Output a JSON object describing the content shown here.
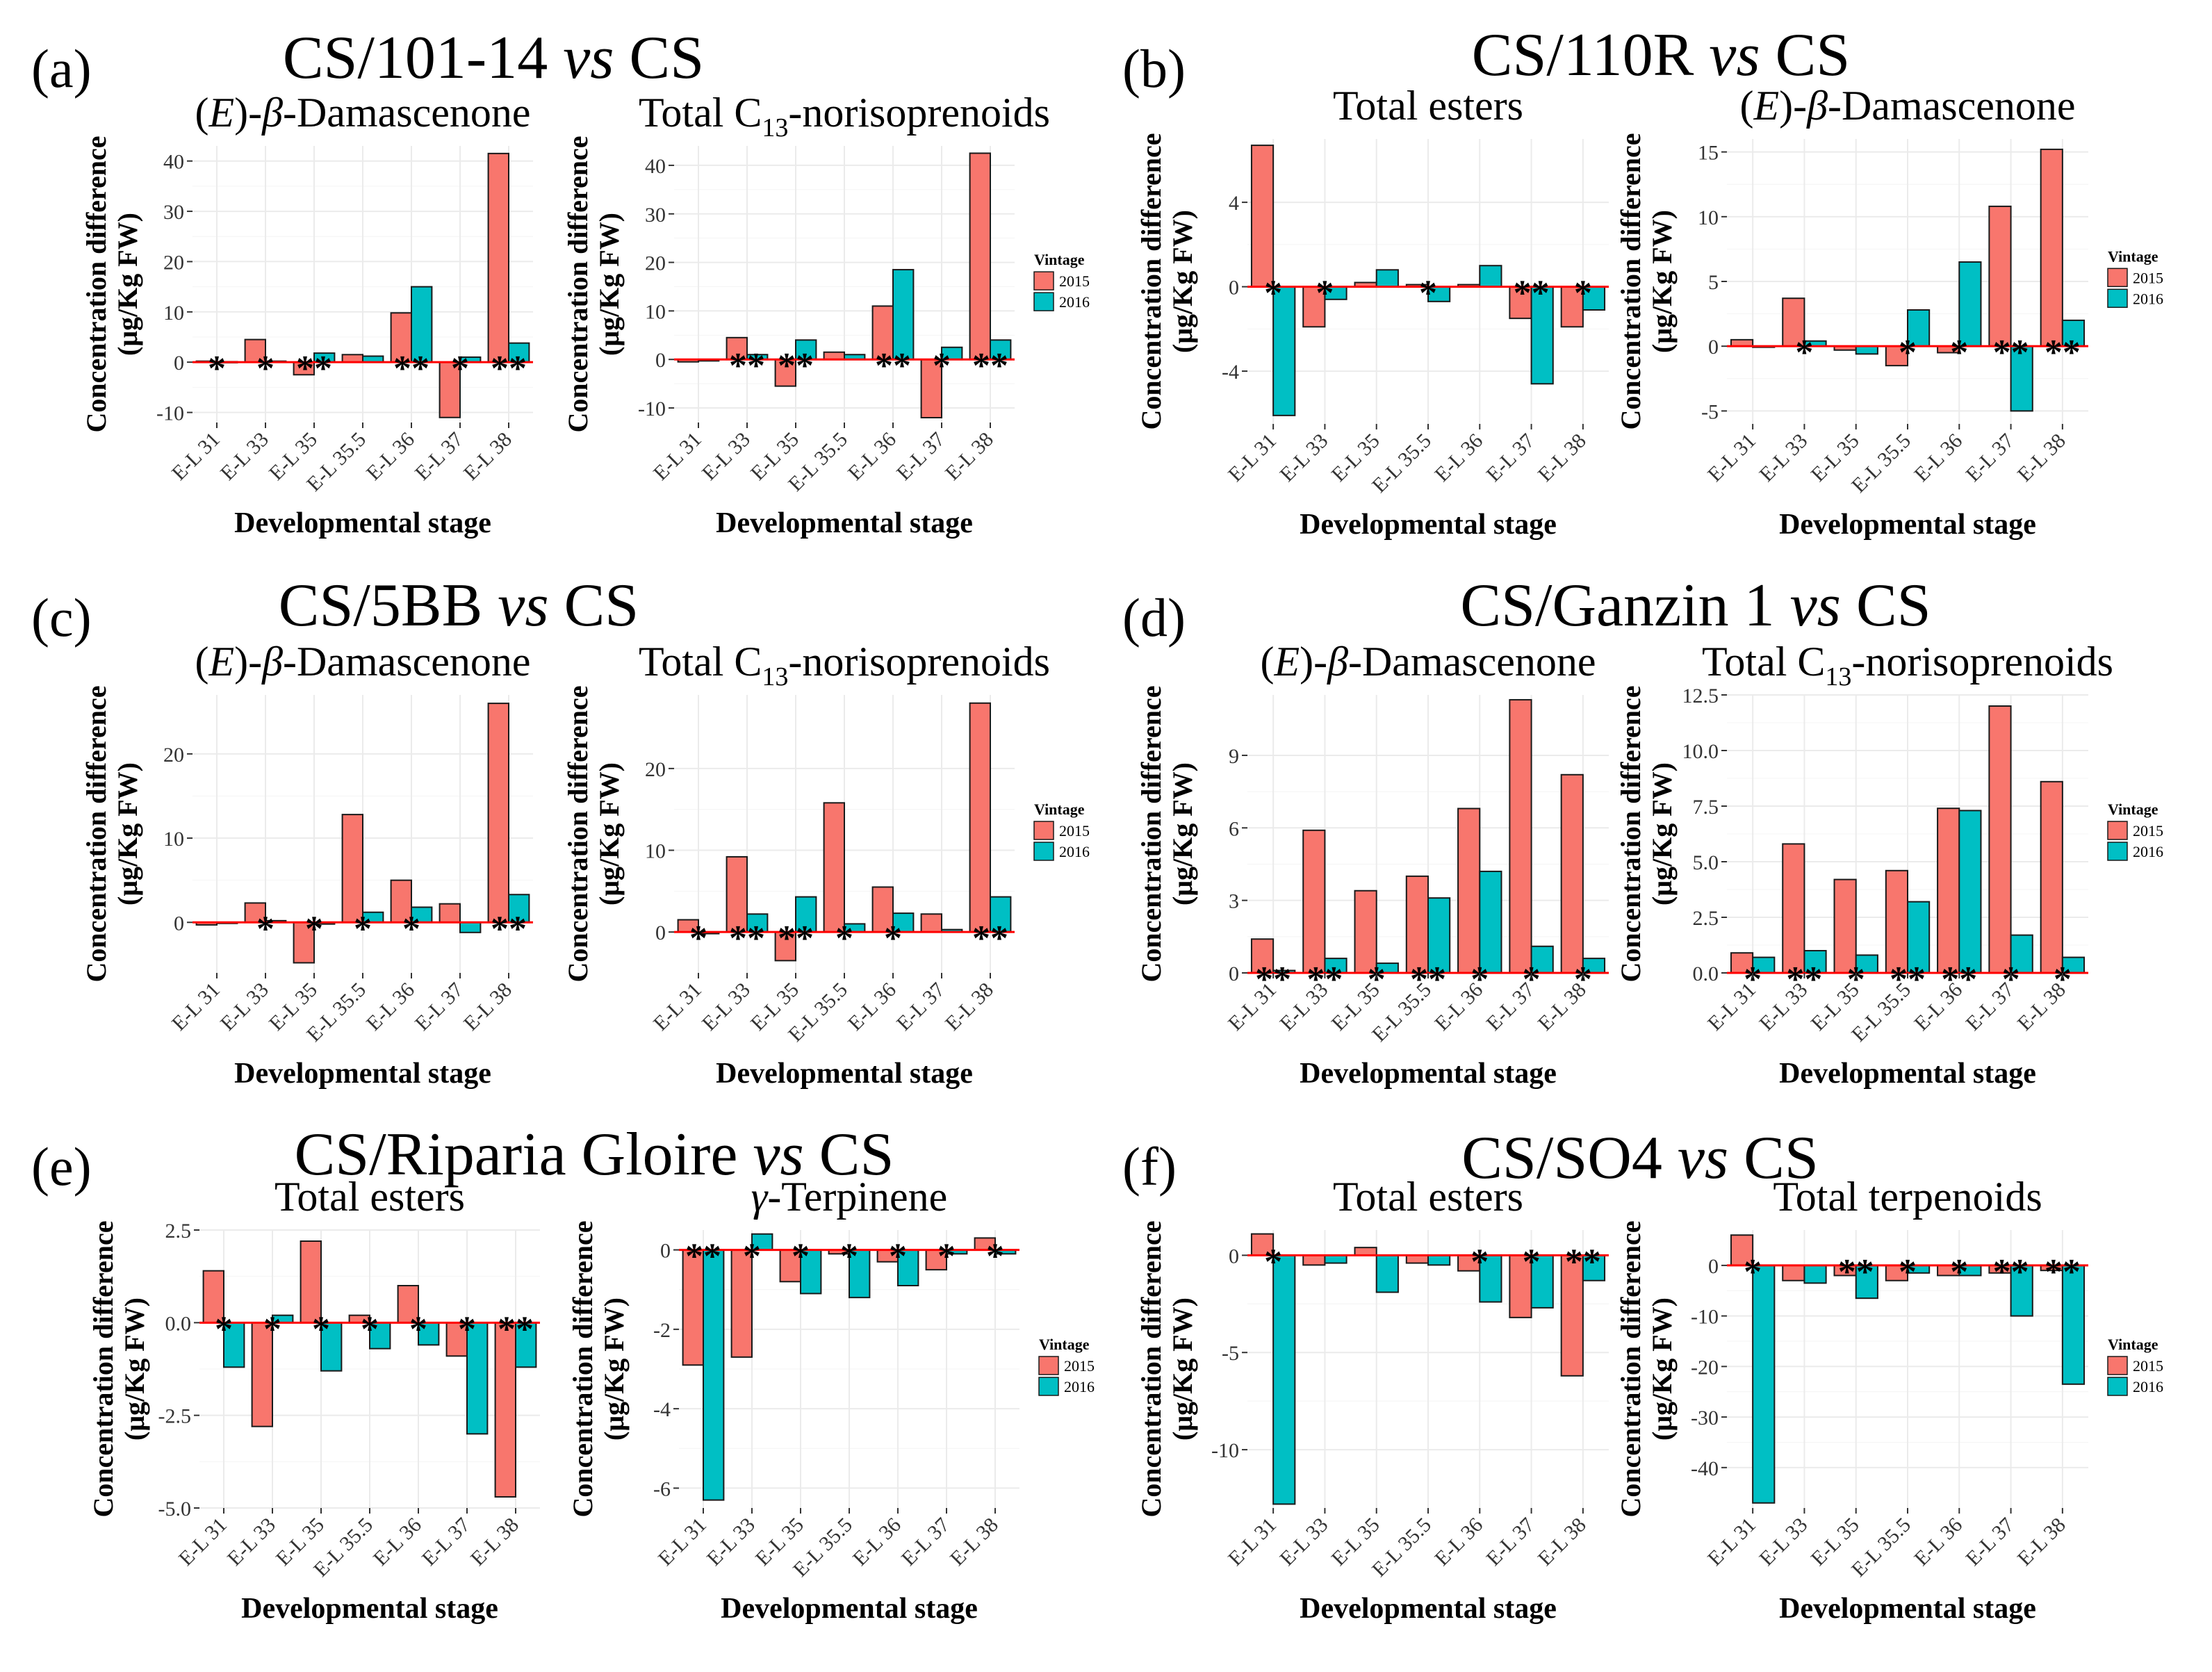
{
  "figure": {
    "stages": [
      "E-L 31",
      "E-L 33",
      "E-L 35",
      "E-L 35.5",
      "E-L 36",
      "E-L 37",
      "E-L 38"
    ],
    "ylabel_line1": "Concentration difference",
    "ylabel_line2": "(μg/Kg FW)",
    "xlabel": "Developmental stage",
    "legend_title": "Vintage",
    "series": [
      {
        "name": "2015",
        "color": "#F8766D"
      },
      {
        "name": "2016",
        "color": "#00BFC4"
      }
    ],
    "zero_line_color": "#FF0000"
  },
  "panels": [
    {
      "letter": "(a)",
      "title_pre": "CS/101-14 ",
      "title_vs": "vs",
      "title_post": " CS"
    },
    {
      "letter": "(b)",
      "title_pre": "CS/110R ",
      "title_vs": "vs",
      "title_post": " CS"
    },
    {
      "letter": "(c)",
      "title_pre": "CS/5BB ",
      "title_vs": "vs",
      "title_post": " CS"
    },
    {
      "letter": "(d)",
      "title_pre": "CS/Ganzin 1 ",
      "title_vs": "vs",
      "title_post": " CS"
    },
    {
      "letter": "(e)",
      "title_pre": "CS/Riparia Gloire ",
      "title_vs": "vs",
      "title_post": " CS"
    },
    {
      "letter": "(f)",
      "title_pre": "CS/SO4 ",
      "title_vs": "vs",
      "title_post": " CS"
    }
  ],
  "chart_data": [
    {
      "type": "bar",
      "panel": "(a)",
      "title": "(E)-β-Damascenone",
      "title_parts": [
        "(",
        "E",
        ")-",
        "β",
        "-Damascenone"
      ],
      "categories": [
        "E-L 31",
        "E-L 33",
        "E-L 35",
        "E-L 35.5",
        "E-L 36",
        "E-L 37",
        "E-L 38"
      ],
      "ylim": [
        -12,
        43
      ],
      "yticks": [
        -10,
        0,
        10,
        20,
        30,
        40
      ],
      "ytick_labels": [
        "-10",
        "0",
        "10",
        "20",
        "30",
        "40"
      ],
      "series": [
        {
          "name": "2015",
          "values": [
            0.2,
            4.5,
            -2.5,
            1.5,
            9.8,
            -11,
            41.5
          ]
        },
        {
          "name": "2016",
          "values": [
            0.1,
            0.2,
            1.8,
            1.2,
            15,
            1,
            3.8
          ]
        }
      ],
      "significance": [
        "*",
        "*",
        "**",
        "",
        "**",
        "*",
        "**"
      ]
    },
    {
      "type": "bar",
      "panel": "(a)",
      "title": "Total C13-norisoprenoids",
      "title_parts": [
        "Total C",
        "13",
        "-norisoprenoids"
      ],
      "categories": [
        "E-L 31",
        "E-L 33",
        "E-L 35",
        "E-L 35.5",
        "E-L 36",
        "E-L 37",
        "E-L 38"
      ],
      "ylim": [
        -13,
        44
      ],
      "yticks": [
        -10,
        0,
        10,
        20,
        30,
        40
      ],
      "ytick_labels": [
        "-10",
        "0",
        "10",
        "20",
        "30",
        "40"
      ],
      "series": [
        {
          "name": "2015",
          "values": [
            -0.5,
            4.5,
            -5.5,
            1.5,
            11,
            -12,
            42.5
          ]
        },
        {
          "name": "2016",
          "values": [
            -0.3,
            1,
            4,
            1,
            18.5,
            2.5,
            4
          ]
        }
      ],
      "significance": [
        "",
        "**",
        "**",
        "",
        "**",
        "*",
        "**"
      ]
    },
    {
      "type": "bar",
      "panel": "(b)",
      "title": "Total esters",
      "title_parts": [
        "Total esters"
      ],
      "categories": [
        "E-L 31",
        "E-L 33",
        "E-L 35",
        "E-L 35.5",
        "E-L 36",
        "E-L 37",
        "E-L 38"
      ],
      "ylim": [
        -6.5,
        7
      ],
      "yticks": [
        -4,
        0,
        4
      ],
      "ytick_labels": [
        "-4",
        "0",
        "4"
      ],
      "series": [
        {
          "name": "2015",
          "values": [
            6.7,
            -1.9,
            0.2,
            0.1,
            0.1,
            -1.5,
            -1.9
          ]
        },
        {
          "name": "2016",
          "values": [
            -6.1,
            -0.6,
            0.8,
            -0.7,
            1,
            -4.6,
            -1.1
          ]
        }
      ],
      "significance": [
        "*",
        "*",
        "",
        "*",
        "",
        "**",
        "*"
      ]
    },
    {
      "type": "bar",
      "panel": "(b)",
      "title": "(E)-β-Damascenone",
      "title_parts": [
        "(",
        "E",
        ")-",
        "β",
        "-Damascenone"
      ],
      "categories": [
        "E-L 31",
        "E-L 33",
        "E-L 35",
        "E-L 35.5",
        "E-L 36",
        "E-L 37",
        "E-L 38"
      ],
      "ylim": [
        -6,
        16
      ],
      "yticks": [
        -5,
        0,
        5,
        10,
        15
      ],
      "ytick_labels": [
        "-5",
        "0",
        "5",
        "10",
        "15"
      ],
      "series": [
        {
          "name": "2015",
          "values": [
            0.5,
            3.7,
            -0.3,
            -1.5,
            -0.5,
            10.8,
            15.2
          ]
        },
        {
          "name": "2016",
          "values": [
            0,
            0.4,
            -0.6,
            2.8,
            6.5,
            -5,
            2
          ]
        }
      ],
      "significance": [
        "",
        "*",
        "",
        "*",
        "*",
        "**",
        "**"
      ]
    },
    {
      "type": "bar",
      "panel": "(c)",
      "title": "(E)-β-Damascenone",
      "title_parts": [
        "(",
        "E",
        ")-",
        "β",
        "-Damascenone"
      ],
      "categories": [
        "E-L 31",
        "E-L 33",
        "E-L 35",
        "E-L 35.5",
        "E-L 36",
        "E-L 37",
        "E-L 38"
      ],
      "ylim": [
        -6,
        27
      ],
      "yticks": [
        0,
        10,
        20
      ],
      "ytick_labels": [
        "0",
        "10",
        "20"
      ],
      "series": [
        {
          "name": "2015",
          "values": [
            -0.3,
            2.3,
            -4.8,
            12.8,
            5,
            2.2,
            26
          ]
        },
        {
          "name": "2016",
          "values": [
            -0.1,
            0.2,
            -0.2,
            1.2,
            1.8,
            -1.2,
            3.3
          ]
        }
      ],
      "significance": [
        "",
        "*",
        "*",
        "*",
        "*",
        "",
        "**"
      ]
    },
    {
      "type": "bar",
      "panel": "(c)",
      "title": "Total C13-norisoprenoids",
      "title_parts": [
        "Total C",
        "13",
        "-norisoprenoids"
      ],
      "categories": [
        "E-L 31",
        "E-L 33",
        "E-L 35",
        "E-L 35.5",
        "E-L 36",
        "E-L 37",
        "E-L 38"
      ],
      "ylim": [
        -5,
        29
      ],
      "yticks": [
        0,
        10,
        20
      ],
      "ytick_labels": [
        "0",
        "10",
        "20"
      ],
      "series": [
        {
          "name": "2015",
          "values": [
            1.5,
            9.2,
            -3.5,
            15.8,
            5.5,
            2.2,
            28
          ]
        },
        {
          "name": "2016",
          "values": [
            -0.2,
            2.2,
            4.3,
            1,
            2.3,
            0.3,
            4.3
          ]
        }
      ],
      "significance": [
        "*",
        "**",
        "**",
        "*",
        "*",
        "",
        "**"
      ]
    },
    {
      "type": "bar",
      "panel": "(d)",
      "title": "(E)-β-Damascenone",
      "title_parts": [
        "(",
        "E",
        ")-",
        "β",
        "-Damascenone"
      ],
      "categories": [
        "E-L 31",
        "E-L 33",
        "E-L 35",
        "E-L 35.5",
        "E-L 36",
        "E-L 37",
        "E-L 38"
      ],
      "ylim": [
        0,
        11.5
      ],
      "yticks": [
        0,
        3,
        6,
        9
      ],
      "ytick_labels": [
        "0",
        "3",
        "6",
        "9"
      ],
      "series": [
        {
          "name": "2015",
          "values": [
            1.4,
            5.9,
            3.4,
            4,
            6.8,
            11.3,
            8.2
          ]
        },
        {
          "name": "2016",
          "values": [
            0.1,
            0.6,
            0.4,
            3.1,
            4.2,
            1.1,
            0.6
          ]
        }
      ],
      "significance": [
        "**",
        "**",
        "*",
        "**",
        "*",
        "*",
        "*"
      ]
    },
    {
      "type": "bar",
      "panel": "(d)",
      "title": "Total C13-norisoprenoids",
      "title_parts": [
        "Total C",
        "13",
        "-norisoprenoids"
      ],
      "categories": [
        "E-L 31",
        "E-L 33",
        "E-L 35",
        "E-L 35.5",
        "E-L 36",
        "E-L 37",
        "E-L 38"
      ],
      "ylim": [
        0,
        12.5
      ],
      "yticks": [
        0,
        2.5,
        5,
        7.5,
        10,
        12.5
      ],
      "ytick_labels": [
        "0.0",
        "2.5",
        "5.0",
        "7.5",
        "10.0",
        "12.5"
      ],
      "series": [
        {
          "name": "2015",
          "values": [
            0.9,
            5.8,
            4.2,
            4.6,
            7.4,
            12,
            8.6
          ]
        },
        {
          "name": "2016",
          "values": [
            0.7,
            1,
            0.8,
            3.2,
            7.3,
            1.7,
            0.7
          ]
        }
      ],
      "significance": [
        "*",
        "**",
        "*",
        "**",
        "**",
        "*",
        "*"
      ]
    },
    {
      "type": "bar",
      "panel": "(e)",
      "title": "Total esters",
      "title_parts": [
        "Total esters"
      ],
      "categories": [
        "E-L 31",
        "E-L 33",
        "E-L 35",
        "E-L 35.5",
        "E-L 36",
        "E-L 37",
        "E-L 38"
      ],
      "ylim": [
        -5,
        2.5
      ],
      "yticks": [
        -5,
        -2.5,
        0,
        2.5
      ],
      "ytick_labels": [
        "-5.0",
        "-2.5",
        "0.0",
        "2.5"
      ],
      "series": [
        {
          "name": "2015",
          "values": [
            1.4,
            -2.8,
            2.2,
            0.2,
            1,
            -0.9,
            -4.7
          ]
        },
        {
          "name": "2016",
          "values": [
            -1.2,
            0.2,
            -1.3,
            -0.7,
            -0.6,
            -3,
            -1.2
          ]
        }
      ],
      "significance": [
        "*",
        "*",
        "*",
        "*",
        "*",
        "*",
        "**"
      ]
    },
    {
      "type": "bar",
      "panel": "(e)",
      "title": "γ-Terpinene",
      "title_parts": [
        "γ",
        "-Terpinene"
      ],
      "categories": [
        "E-L 31",
        "E-L 33",
        "E-L 35",
        "E-L 35.5",
        "E-L 36",
        "E-L 37",
        "E-L 38"
      ],
      "ylim": [
        -6.5,
        0.5
      ],
      "yticks": [
        -6,
        -4,
        -2,
        0
      ],
      "ytick_labels": [
        "-6",
        "-4",
        "-2",
        "0"
      ],
      "series": [
        {
          "name": "2015",
          "values": [
            -2.9,
            -2.7,
            -0.8,
            -0.1,
            -0.3,
            -0.5,
            0.3
          ]
        },
        {
          "name": "2016",
          "values": [
            -6.3,
            0.4,
            -1.1,
            -1.2,
            -0.9,
            -0.1,
            -0.1
          ]
        }
      ],
      "significance": [
        "**",
        "*",
        "*",
        "*",
        "*",
        "*",
        "*"
      ]
    },
    {
      "type": "bar",
      "panel": "(f)",
      "title": "Total esters",
      "title_parts": [
        "Total esters"
      ],
      "categories": [
        "E-L 31",
        "E-L 33",
        "E-L 35",
        "E-L 35.5",
        "E-L 36",
        "E-L 37",
        "E-L 38"
      ],
      "ylim": [
        -13,
        1.3
      ],
      "yticks": [
        -10,
        -5,
        0
      ],
      "ytick_labels": [
        "-10",
        "-5",
        "0"
      ],
      "series": [
        {
          "name": "2015",
          "values": [
            1.1,
            -0.5,
            0.4,
            -0.4,
            -0.8,
            -3.2,
            -6.2
          ]
        },
        {
          "name": "2016",
          "values": [
            -12.8,
            -0.4,
            -1.9,
            -0.5,
            -2.4,
            -2.7,
            -1.3
          ]
        }
      ],
      "significance": [
        "*",
        "",
        "",
        "",
        "*",
        "*",
        "**"
      ]
    },
    {
      "type": "bar",
      "panel": "(f)",
      "title": "Total terpenoids",
      "title_parts": [
        "Total terpenoids"
      ],
      "categories": [
        "E-L 31",
        "E-L 33",
        "E-L 35",
        "E-L 35.5",
        "E-L 36",
        "E-L 37",
        "E-L 38"
      ],
      "ylim": [
        -48,
        7
      ],
      "yticks": [
        -40,
        -30,
        -20,
        -10,
        0
      ],
      "ytick_labels": [
        "-40",
        "-30",
        "-20",
        "-10",
        "0"
      ],
      "series": [
        {
          "name": "2015",
          "values": [
            6,
            -3,
            -2,
            -3,
            -2,
            -1.5,
            -1
          ]
        },
        {
          "name": "2016",
          "values": [
            -47,
            -3.5,
            -6.5,
            -1.5,
            -2,
            -10,
            -23.5
          ]
        }
      ],
      "significance": [
        "*",
        "",
        "**",
        "*",
        "*",
        "**",
        "**"
      ]
    }
  ]
}
